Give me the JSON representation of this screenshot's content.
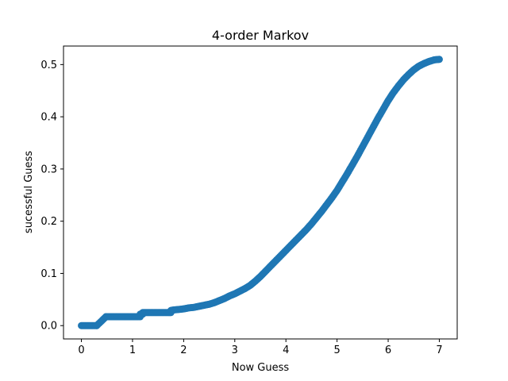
{
  "chart_data": {
    "type": "line",
    "title": "4-order Markov",
    "xlabel": "Now Guess",
    "ylabel": "sucessful Guess",
    "xlim": [
      -0.35,
      7.35
    ],
    "ylim": [
      -0.0255,
      0.5355
    ],
    "xticks": [
      0,
      1,
      2,
      3,
      4,
      5,
      6,
      7
    ],
    "yticks": [
      0.0,
      0.1,
      0.2,
      0.3,
      0.4,
      0.5
    ],
    "xtick_labels": [
      "0",
      "1",
      "2",
      "3",
      "4",
      "5",
      "6",
      "7"
    ],
    "ytick_labels": [
      "0.0",
      "0.1",
      "0.2",
      "0.3",
      "0.4",
      "0.5"
    ],
    "grid": false,
    "legend": null,
    "series": [
      {
        "color": "#1f77b4",
        "marker": "circle",
        "x": [
          0,
          0.3,
          0.3,
          0.48,
          0.48,
          0.6,
          0.7,
          0.8,
          0.9,
          1.0,
          1.1,
          1.15,
          1.15,
          1.2,
          1.2,
          1.3,
          1.4,
          1.5,
          1.6,
          1.7,
          1.75,
          1.75,
          1.8,
          1.9,
          2.0,
          2.1,
          2.2,
          2.3,
          2.4,
          2.5,
          2.6,
          2.7,
          2.8,
          2.9,
          3.0,
          3.1,
          3.2,
          3.3,
          3.4,
          3.5,
          3.6,
          3.7,
          3.8,
          3.9,
          4.0,
          4.1,
          4.2,
          4.3,
          4.4,
          4.5,
          4.6,
          4.7,
          4.8,
          4.9,
          5.0,
          5.1,
          5.2,
          5.3,
          5.4,
          5.5,
          5.6,
          5.7,
          5.8,
          5.9,
          6.0,
          6.1,
          6.2,
          6.3,
          6.4,
          6.5,
          6.6,
          6.7,
          6.8,
          6.9,
          7.0
        ],
        "y": [
          0.0,
          0.0,
          0.0,
          0.017,
          0.017,
          0.017,
          0.017,
          0.017,
          0.017,
          0.017,
          0.017,
          0.017,
          0.022,
          0.022,
          0.025,
          0.025,
          0.025,
          0.025,
          0.025,
          0.025,
          0.025,
          0.029,
          0.03,
          0.031,
          0.032,
          0.034,
          0.035,
          0.037,
          0.039,
          0.041,
          0.044,
          0.048,
          0.052,
          0.057,
          0.061,
          0.066,
          0.071,
          0.077,
          0.085,
          0.094,
          0.104,
          0.114,
          0.124,
          0.134,
          0.144,
          0.154,
          0.164,
          0.174,
          0.184,
          0.195,
          0.207,
          0.219,
          0.232,
          0.245,
          0.259,
          0.275,
          0.291,
          0.308,
          0.325,
          0.343,
          0.361,
          0.379,
          0.397,
          0.414,
          0.431,
          0.446,
          0.459,
          0.471,
          0.481,
          0.49,
          0.497,
          0.502,
          0.506,
          0.509,
          0.51
        ]
      }
    ]
  }
}
